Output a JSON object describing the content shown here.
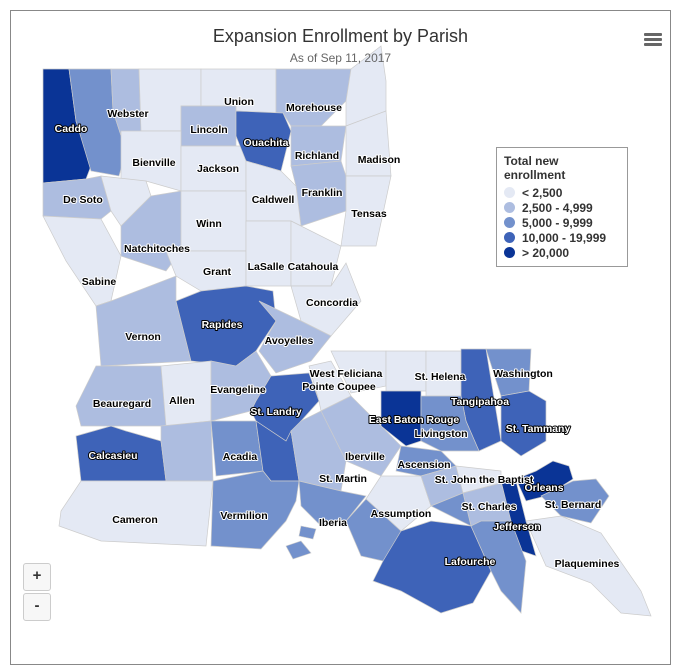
{
  "title": "Expansion Enrollment by Parish",
  "subtitle": "As of Sep 11, 2017",
  "menu_icon": "hamburger-menu-icon",
  "zoom_in_label": "+",
  "zoom_out_label": "-",
  "legend": {
    "title": "Total new enrollment",
    "bins": [
      {
        "label": "< 2,500",
        "color": "#e4e9f4"
      },
      {
        "label": "2,500 - 4,999",
        "color": "#adbde0"
      },
      {
        "label": "5,000 - 9,999",
        "color": "#7391cc"
      },
      {
        "label": "10,000 - 19,999",
        "color": "#3e63b8"
      },
      {
        "label": "> 20,000",
        "color": "#0a3496"
      }
    ]
  },
  "parishes": [
    {
      "name": "Caddo",
      "bin": 4
    },
    {
      "name": "",
      "bin": 2
    },
    {
      "name": "Webster",
      "bin": 1
    },
    {
      "name": "",
      "bin": 0
    },
    {
      "name": "Union",
      "bin": 0
    },
    {
      "name": "Morehouse",
      "bin": 1
    },
    {
      "name": "",
      "bin": 0
    },
    {
      "name": "Lincoln",
      "bin": 1
    },
    {
      "name": "Bienville",
      "bin": 0
    },
    {
      "name": "Jackson",
      "bin": 0
    },
    {
      "name": "Ouachita",
      "bin": 3
    },
    {
      "name": "Richland",
      "bin": 1
    },
    {
      "name": "Madison",
      "bin": 0
    },
    {
      "name": "Franklin",
      "bin": 1
    },
    {
      "name": "Caldwell",
      "bin": 0
    },
    {
      "name": "Tensas",
      "bin": 0
    },
    {
      "name": "De Soto",
      "bin": 1
    },
    {
      "name": "",
      "bin": 0
    },
    {
      "name": "Natchitoches",
      "bin": 1
    },
    {
      "name": "Winn",
      "bin": 0
    },
    {
      "name": "Sabine",
      "bin": 0
    },
    {
      "name": "Grant",
      "bin": 0
    },
    {
      "name": "LaSalle",
      "bin": 0
    },
    {
      "name": "Catahoula",
      "bin": 0
    },
    {
      "name": "Concordia",
      "bin": 0
    },
    {
      "name": "Vernon",
      "bin": 1
    },
    {
      "name": "Rapides",
      "bin": 3
    },
    {
      "name": "Avoyelles",
      "bin": 1
    },
    {
      "name": "Beauregard",
      "bin": 1
    },
    {
      "name": "Allen",
      "bin": 0
    },
    {
      "name": "Evangeline",
      "bin": 1
    },
    {
      "name": "St. Landry",
      "bin": 3
    },
    {
      "name": "Pointe Coupee",
      "bin": 0
    },
    {
      "name": "West Feliciana",
      "bin": 0
    },
    {
      "name": "",
      "bin": 0
    },
    {
      "name": "St. Helena",
      "bin": 0
    },
    {
      "name": "Tangipahoa",
      "bin": 3
    },
    {
      "name": "Washington",
      "bin": 2
    },
    {
      "name": "St. Tammany",
      "bin": 3
    },
    {
      "name": "East Baton Rouge",
      "bin": 4
    },
    {
      "name": "Livingston",
      "bin": 2
    },
    {
      "name": "Calcasieu",
      "bin": 3
    },
    {
      "name": "",
      "bin": 1
    },
    {
      "name": "Acadia",
      "bin": 2
    },
    {
      "name": "",
      "bin": 3
    },
    {
      "name": "Iberville",
      "bin": 1
    },
    {
      "name": "St. Martin",
      "bin": 1
    },
    {
      "name": "Ascension",
      "bin": 2
    },
    {
      "name": "Cameron",
      "bin": 0
    },
    {
      "name": "Vermilion",
      "bin": 2
    },
    {
      "name": "Iberia",
      "bin": 2
    },
    {
      "name": "Assumption",
      "bin": 0
    },
    {
      "name": "",
      "bin": 1
    },
    {
      "name": "St. John the Baptist",
      "bin": 0
    },
    {
      "name": "St. Charles",
      "bin": 1
    },
    {
      "name": "Jefferson",
      "bin": 4
    },
    {
      "name": "Orleans",
      "bin": 4
    },
    {
      "name": "St. Bernard",
      "bin": 2
    },
    {
      "name": "Plaquemines",
      "bin": 0
    },
    {
      "name": "Lafourche",
      "bin": 3
    },
    {
      "name": "",
      "bin": 2
    },
    {
      "name": "",
      "bin": 2
    }
  ]
}
